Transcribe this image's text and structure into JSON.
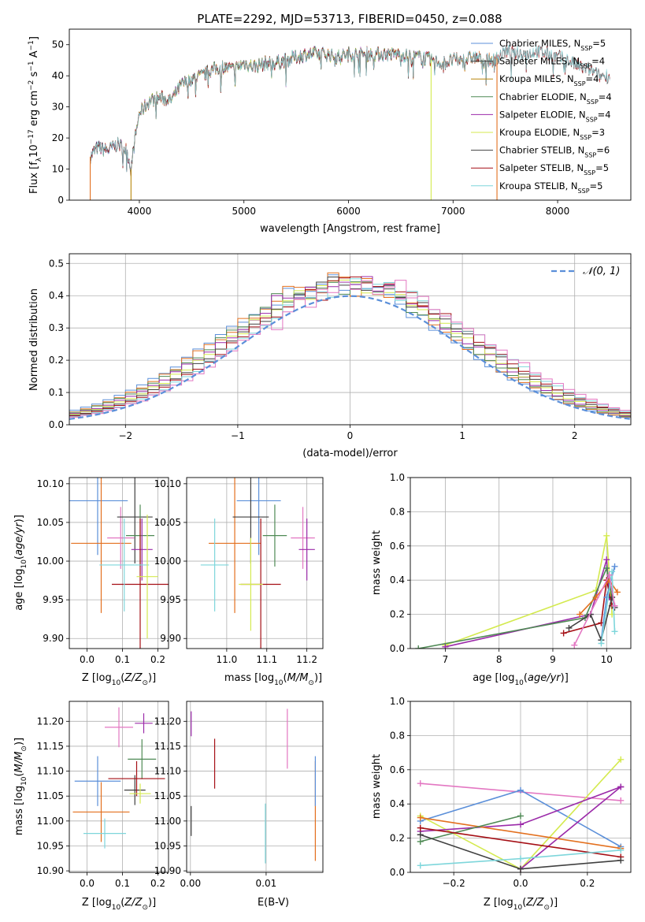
{
  "title": "PLATE=2292, MJD=53713, FIBERID=0450, z=0.088",
  "colors": {
    "chabrier_miles": "#5b8fd9",
    "salpeter_miles": "#e3701f",
    "kroupa_miles": "#b8860b",
    "chabrier_elodie": "#4f8a55",
    "salpeter_elodie": "#9b2aa9",
    "kroupa_elodie": "#d4ea4f",
    "chabrier_stelib": "#404040",
    "salpeter_stelib": "#a50f15",
    "kroupa_stelib": "#7ed6db",
    "pink": "#e377c2"
  },
  "chart_data": [
    {
      "id": "spectrum",
      "type": "line",
      "xlabel": "wavelength [Angstrom, rest frame]",
      "ylabel": "Flux [f_λ 10^-17 erg cm^-2 s^-1 A^-1]",
      "xlim": [
        3330,
        8700
      ],
      "ylim": [
        0,
        55
      ],
      "xticks": [
        4000,
        5000,
        6000,
        7000,
        8000
      ],
      "yticks": [
        0,
        10,
        20,
        30,
        40,
        50
      ],
      "grid": false,
      "legend_position": "top-right",
      "legend": [
        {
          "label": "Chabrier MILES, N",
          "sub": "SSP",
          "suffix": "=5",
          "color_key": "chabrier_miles"
        },
        {
          "label": "Salpeter MILES, N",
          "sub": "SSP",
          "suffix": "=4",
          "color_key": "chabrier_stelib"
        },
        {
          "label": "Kroupa MILES, N",
          "sub": "SSP",
          "suffix": "=4",
          "color_key": "kroupa_miles"
        },
        {
          "label": "Chabrier ELODIE, N",
          "sub": "SSP",
          "suffix": "=4",
          "color_key": "chabrier_elodie"
        },
        {
          "label": "Salpeter ELODIE, N",
          "sub": "SSP",
          "suffix": "=4",
          "color_key": "salpeter_elodie"
        },
        {
          "label": "Kroupa ELODIE, N",
          "sub": "SSP",
          "suffix": "=3",
          "color_key": "kroupa_elodie"
        },
        {
          "label": "Chabrier STELIB, N",
          "sub": "SSP",
          "suffix": "=6",
          "color_key": "chabrier_stelib"
        },
        {
          "label": "Salpeter STELIB, N",
          "sub": "SSP",
          "suffix": "=5",
          "color_key": "salpeter_stelib"
        },
        {
          "label": "Kroupa STELIB, N",
          "sub": "SSP",
          "suffix": "=5",
          "color_key": "kroupa_stelib"
        }
      ],
      "continuum": [
        [
          3530,
          14
        ],
        [
          3600,
          17
        ],
        [
          3700,
          16
        ],
        [
          3800,
          18
        ],
        [
          3880,
          16
        ],
        [
          3920,
          10
        ],
        [
          3960,
          20
        ],
        [
          4000,
          28
        ],
        [
          4100,
          32
        ],
        [
          4200,
          33
        ],
        [
          4300,
          32
        ],
        [
          4400,
          37
        ],
        [
          4500,
          39
        ],
        [
          4600,
          40
        ],
        [
          4700,
          42
        ],
        [
          4800,
          43
        ],
        [
          4900,
          42
        ],
        [
          5000,
          44
        ],
        [
          5100,
          43
        ],
        [
          5200,
          44
        ],
        [
          5300,
          44
        ],
        [
          5400,
          45
        ],
        [
          5500,
          46
        ],
        [
          5600,
          47
        ],
        [
          5700,
          47
        ],
        [
          5800,
          47
        ],
        [
          5900,
          46
        ],
        [
          6000,
          47
        ],
        [
          6100,
          47
        ],
        [
          6200,
          47
        ],
        [
          6300,
          47
        ],
        [
          6400,
          47
        ],
        [
          6500,
          47
        ],
        [
          6600,
          46
        ],
        [
          6700,
          46
        ],
        [
          6800,
          45
        ],
        [
          6900,
          44
        ],
        [
          7000,
          45
        ],
        [
          7100,
          45
        ],
        [
          7200,
          46
        ],
        [
          7300,
          45
        ],
        [
          7400,
          45
        ],
        [
          7500,
          48
        ],
        [
          7600,
          47
        ],
        [
          7700,
          47
        ],
        [
          7800,
          48
        ],
        [
          7900,
          47
        ],
        [
          8000,
          46
        ],
        [
          8100,
          45
        ],
        [
          8200,
          43
        ],
        [
          8300,
          42
        ],
        [
          8400,
          40
        ],
        [
          8500,
          40
        ]
      ],
      "spectrum_ranges": [
        {
          "series": "chabrier_miles",
          "x": [
            3530,
            7420
          ]
        },
        {
          "series": "salpeter_miles",
          "x": [
            3530,
            7420
          ]
        },
        {
          "series": "kroupa_miles",
          "x": [
            3530,
            7420
          ]
        },
        {
          "series": "chabrier_elodie",
          "x": [
            3530,
            6790
          ]
        },
        {
          "series": "salpeter_elodie",
          "x": [
            3530,
            6790
          ]
        },
        {
          "series": "kroupa_elodie",
          "x": [
            3920,
            6790
          ]
        },
        {
          "series": "chabrier_stelib",
          "x": [
            3530,
            8500
          ]
        },
        {
          "series": "salpeter_stelib",
          "x": [
            3530,
            8500
          ]
        },
        {
          "series": "kroupa_stelib",
          "x": [
            3530,
            8500
          ]
        }
      ],
      "drop_lines": [
        {
          "x": 3530,
          "color_key": "salpeter_miles"
        },
        {
          "x": 3920,
          "color_key": "kroupa_miles"
        },
        {
          "x": 6790,
          "color_key": "kroupa_elodie"
        },
        {
          "x": 7420,
          "color_key": "salpeter_miles"
        }
      ]
    },
    {
      "id": "residuals",
      "type": "line",
      "xlabel": "(data-model)/error",
      "ylabel": "Normed distribution",
      "xlim": [
        -2.5,
        2.5
      ],
      "ylim": [
        0,
        0.53
      ],
      "xticks": [
        -2,
        -1,
        0,
        1,
        2
      ],
      "yticks": [
        0.0,
        0.1,
        0.2,
        0.3,
        0.4,
        0.5
      ],
      "grid": true,
      "legend_position": "top-right",
      "legend_label": "𝒩(0, 1)",
      "bin_width": 0.1,
      "gaussian": {
        "mean": 0,
        "sigma": 1
      }
    },
    {
      "id": "age_vs_Z",
      "type": "scatter",
      "xlabel": "Z [log10(Z/Z⊙)]",
      "ylabel": "age [log10(age/yr)]",
      "xlim": [
        -0.05,
        0.23
      ],
      "ylim": [
        9.887,
        10.108
      ],
      "xticks": [
        0.0,
        0.1,
        0.2
      ],
      "yticks": [
        9.9,
        9.95,
        10.0,
        10.05,
        10.1
      ],
      "grid": true,
      "points": [
        {
          "color_key": "chabrier_miles",
          "x": 0.03,
          "xerr": 0.085,
          "y": 10.078,
          "yerr": 0.07
        },
        {
          "color_key": "salpeter_miles",
          "x": 0.04,
          "xerr": 0.085,
          "y": 10.023,
          "yerr": 0.09
        },
        {
          "color_key": "pink",
          "x": 0.095,
          "xerr": 0.038,
          "y": 10.03,
          "yerr": 0.04
        },
        {
          "color_key": "chabrier_stelib",
          "x": 0.135,
          "xerr": 0.05,
          "y": 10.057,
          "yerr": 0.06
        },
        {
          "color_key": "chabrier_elodie",
          "x": 0.15,
          "xerr": 0.04,
          "y": 10.033,
          "yerr": 0.04
        },
        {
          "color_key": "salpeter_elodie",
          "x": 0.155,
          "xerr": 0.03,
          "y": 10.015,
          "yerr": 0.04
        },
        {
          "color_key": "salpeter_stelib",
          "x": 0.15,
          "xerr": 0.08,
          "y": 9.97,
          "yerr": 0.085
        },
        {
          "color_key": "kroupa_stelib",
          "x": 0.105,
          "xerr": 0.07,
          "y": 9.995,
          "yerr": 0.06
        },
        {
          "color_key": "kroupa_elodie",
          "x": 0.17,
          "xerr": 0.03,
          "y": 9.98,
          "yerr": 0.08
        }
      ]
    },
    {
      "id": "age_vs_mass",
      "type": "scatter",
      "xlabel": "mass [log10(M/M⊙)]",
      "xlim": [
        10.9,
        11.24
      ],
      "ylim": [
        9.887,
        10.108
      ],
      "xticks": [
        11.0,
        11.1,
        11.2
      ],
      "yticks": [
        9.9,
        9.95,
        10.0,
        10.05,
        10.1
      ],
      "grid": true,
      "points": [
        {
          "color_key": "chabrier_miles",
          "x": 11.08,
          "xerr": 0.055,
          "y": 10.078,
          "yerr": 0.07
        },
        {
          "color_key": "salpeter_miles",
          "x": 11.02,
          "xerr": 0.065,
          "y": 10.023,
          "yerr": 0.09
        },
        {
          "color_key": "pink",
          "x": 11.19,
          "xerr": 0.03,
          "y": 10.03,
          "yerr": 0.04
        },
        {
          "color_key": "chabrier_stelib",
          "x": 11.06,
          "xerr": 0.045,
          "y": 10.057,
          "yerr": 0.06
        },
        {
          "color_key": "chabrier_elodie",
          "x": 11.12,
          "xerr": 0.03,
          "y": 10.033,
          "yerr": 0.04
        },
        {
          "color_key": "salpeter_elodie",
          "x": 11.2,
          "xerr": 0.02,
          "y": 10.015,
          "yerr": 0.04
        },
        {
          "color_key": "salpeter_stelib",
          "x": 11.085,
          "xerr": 0.05,
          "y": 9.97,
          "yerr": 0.085
        },
        {
          "color_key": "kroupa_stelib",
          "x": 10.97,
          "xerr": 0.035,
          "y": 9.995,
          "yerr": 0.06
        },
        {
          "color_key": "kroupa_elodie",
          "x": 11.06,
          "xerr": 0.03,
          "y": 9.97,
          "yerr": 0.06
        }
      ]
    },
    {
      "id": "weight_vs_age",
      "type": "line",
      "xlabel": "age [log10(age/yr)]",
      "ylabel": "mass weight",
      "xlim": [
        6.35,
        10.45
      ],
      "ylim": [
        0,
        1.0
      ],
      "xticks": [
        7,
        8,
        9,
        10
      ],
      "yticks": [
        0.0,
        0.2,
        0.4,
        0.6,
        0.8,
        1.0
      ],
      "grid": true,
      "series": [
        {
          "color_key": "kroupa_elodie",
          "x": [
            7.0,
            9.8,
            10.0,
            10.1
          ],
          "y": [
            0.02,
            0.34,
            0.66,
            0.2
          ]
        },
        {
          "color_key": "salpeter_elodie",
          "x": [
            7.0,
            9.7,
            10.0,
            10.05
          ],
          "y": [
            0.01,
            0.2,
            0.52,
            0.3
          ]
        },
        {
          "color_key": "chabrier_elodie",
          "x": [
            6.5,
            9.6,
            10.0,
            10.1
          ],
          "y": [
            0.0,
            0.18,
            0.47,
            0.3
          ]
        },
        {
          "color_key": "salpeter_stelib",
          "x": [
            9.2,
            9.9,
            10.0,
            10.1
          ],
          "y": [
            0.09,
            0.15,
            0.4,
            0.25
          ]
        },
        {
          "color_key": "salpeter_miles",
          "x": [
            9.5,
            9.8,
            10.05,
            10.2
          ],
          "y": [
            0.2,
            0.3,
            0.4,
            0.33
          ]
        },
        {
          "color_key": "chabrier_miles",
          "x": [
            9.9,
            10.0,
            10.15
          ],
          "y": [
            0.05,
            0.3,
            0.48
          ]
        },
        {
          "color_key": "chabrier_stelib",
          "x": [
            9.3,
            9.7,
            9.9,
            10.1,
            10.15
          ],
          "y": [
            0.12,
            0.2,
            0.05,
            0.3,
            0.24
          ]
        },
        {
          "color_key": "kroupa_stelib",
          "x": [
            9.9,
            10.1,
            10.15
          ],
          "y": [
            0.03,
            0.45,
            0.1
          ]
        },
        {
          "color_key": "pink",
          "x": [
            9.4,
            10.05,
            10.15
          ],
          "y": [
            0.02,
            0.43,
            0.25
          ]
        }
      ]
    },
    {
      "id": "mass_vs_Z",
      "type": "scatter",
      "xlabel": "Z [log10(Z/Z⊙)]",
      "ylabel": "mass [log10(M/M⊙)]",
      "xlim": [
        -0.05,
        0.23
      ],
      "ylim": [
        10.897,
        11.24
      ],
      "xticks": [
        0.0,
        0.1,
        0.2
      ],
      "yticks": [
        10.9,
        10.95,
        11.0,
        11.05,
        11.1,
        11.15,
        11.2
      ],
      "grid": true,
      "points": [
        {
          "color_key": "chabrier_miles",
          "x": 0.03,
          "xerr": 0.065,
          "y": 11.08,
          "yerr": 0.05
        },
        {
          "color_key": "salpeter_miles",
          "x": 0.04,
          "xerr": 0.08,
          "y": 11.018,
          "yerr": 0.06
        },
        {
          "color_key": "pink",
          "x": 0.09,
          "xerr": 0.04,
          "y": 11.188,
          "yerr": 0.04
        },
        {
          "color_key": "chabrier_stelib",
          "x": 0.135,
          "xerr": 0.03,
          "y": 11.062,
          "yerr": 0.03
        },
        {
          "color_key": "chabrier_elodie",
          "x": 0.155,
          "xerr": 0.04,
          "y": 11.124,
          "yerr": 0.04
        },
        {
          "color_key": "salpeter_elodie",
          "x": 0.16,
          "xerr": 0.025,
          "y": 11.196,
          "yerr": 0.02
        },
        {
          "color_key": "salpeter_stelib",
          "x": 0.14,
          "xerr": 0.08,
          "y": 11.085,
          "yerr": 0.035
        },
        {
          "color_key": "kroupa_stelib",
          "x": 0.05,
          "xerr": 0.06,
          "y": 10.975,
          "yerr": 0.03
        },
        {
          "color_key": "kroupa_elodie",
          "x": 0.15,
          "xerr": 0.03,
          "y": 11.055,
          "yerr": 0.02
        }
      ]
    },
    {
      "id": "mass_vs_ebv",
      "type": "scatter",
      "xlabel": "E(B-V)",
      "xlim": [
        -0.0005,
        0.0175
      ],
      "ylim": [
        10.897,
        11.24
      ],
      "xticks": [
        0.0,
        0.01
      ],
      "yticks": [
        10.9,
        10.95,
        11.0,
        11.05,
        11.1,
        11.15,
        11.2
      ],
      "grid": true,
      "points": [
        {
          "color_key": "salpeter_elodie",
          "x": 0.0001,
          "xerr": 0,
          "y": 11.195,
          "yerr": 0.025
        },
        {
          "color_key": "chabrier_stelib",
          "x": 0.0001,
          "xerr": 0,
          "y": 11.0,
          "yerr": 0.03
        },
        {
          "color_key": "salpeter_stelib",
          "x": 0.0032,
          "xerr": 0,
          "y": 11.115,
          "yerr": 0.05
        },
        {
          "color_key": "kroupa_stelib",
          "x": 0.0099,
          "xerr": 0,
          "y": 10.975,
          "yerr": 0.06
        },
        {
          "color_key": "pink",
          "x": 0.0128,
          "xerr": 0,
          "y": 11.165,
          "yerr": 0.06
        },
        {
          "color_key": "salpeter_miles",
          "x": 0.0165,
          "xerr": 0,
          "y": 11.02,
          "yerr": 0.1
        },
        {
          "color_key": "chabrier_miles",
          "x": 0.0165,
          "xerr": 0,
          "y": 11.08,
          "yerr": 0.05
        }
      ]
    },
    {
      "id": "weight_vs_Z",
      "type": "line",
      "xlabel": "Z [log10(Z/Z⊙)]",
      "ylabel": "mass weight",
      "xlim": [
        -0.33,
        0.33
      ],
      "ylim": [
        0,
        1.0
      ],
      "xticks": [
        -0.2,
        0.0,
        0.2
      ],
      "yticks": [
        0.0,
        0.2,
        0.4,
        0.6,
        0.8,
        1.0
      ],
      "grid": true,
      "series": [
        {
          "color_key": "pink",
          "x": [
            -0.3,
            0.3
          ],
          "y": [
            0.52,
            0.42
          ]
        },
        {
          "color_key": "chabrier_miles",
          "x": [
            -0.3,
            0.0,
            0.3
          ],
          "y": [
            0.3,
            0.48,
            0.15
          ]
        },
        {
          "color_key": "kroupa_elodie",
          "x": [
            -0.3,
            0.0,
            0.3
          ],
          "y": [
            0.33,
            0.02,
            0.66
          ]
        },
        {
          "color_key": "salpeter_elodie",
          "x": [
            -0.3,
            0.0,
            0.3
          ],
          "y": [
            0.24,
            0.28,
            0.5
          ]
        },
        {
          "color_key": "salpeter_elodie",
          "x": [
            0.0,
            0.3
          ],
          "y": [
            0.02,
            0.5
          ]
        },
        {
          "color_key": "salpeter_miles",
          "x": [
            -0.3,
            0.3
          ],
          "y": [
            0.32,
            0.14
          ]
        },
        {
          "color_key": "chabrier_elodie",
          "x": [
            -0.3,
            0.0
          ],
          "y": [
            0.18,
            0.33
          ]
        },
        {
          "color_key": "salpeter_stelib",
          "x": [
            -0.3,
            0.3
          ],
          "y": [
            0.26,
            0.09
          ]
        },
        {
          "color_key": "chabrier_stelib",
          "x": [
            -0.3,
            0.0,
            0.3
          ],
          "y": [
            0.22,
            0.02,
            0.07
          ]
        },
        {
          "color_key": "kroupa_stelib",
          "x": [
            -0.3,
            0.0,
            0.3
          ],
          "y": [
            0.04,
            0.08,
            0.13
          ]
        }
      ]
    }
  ]
}
